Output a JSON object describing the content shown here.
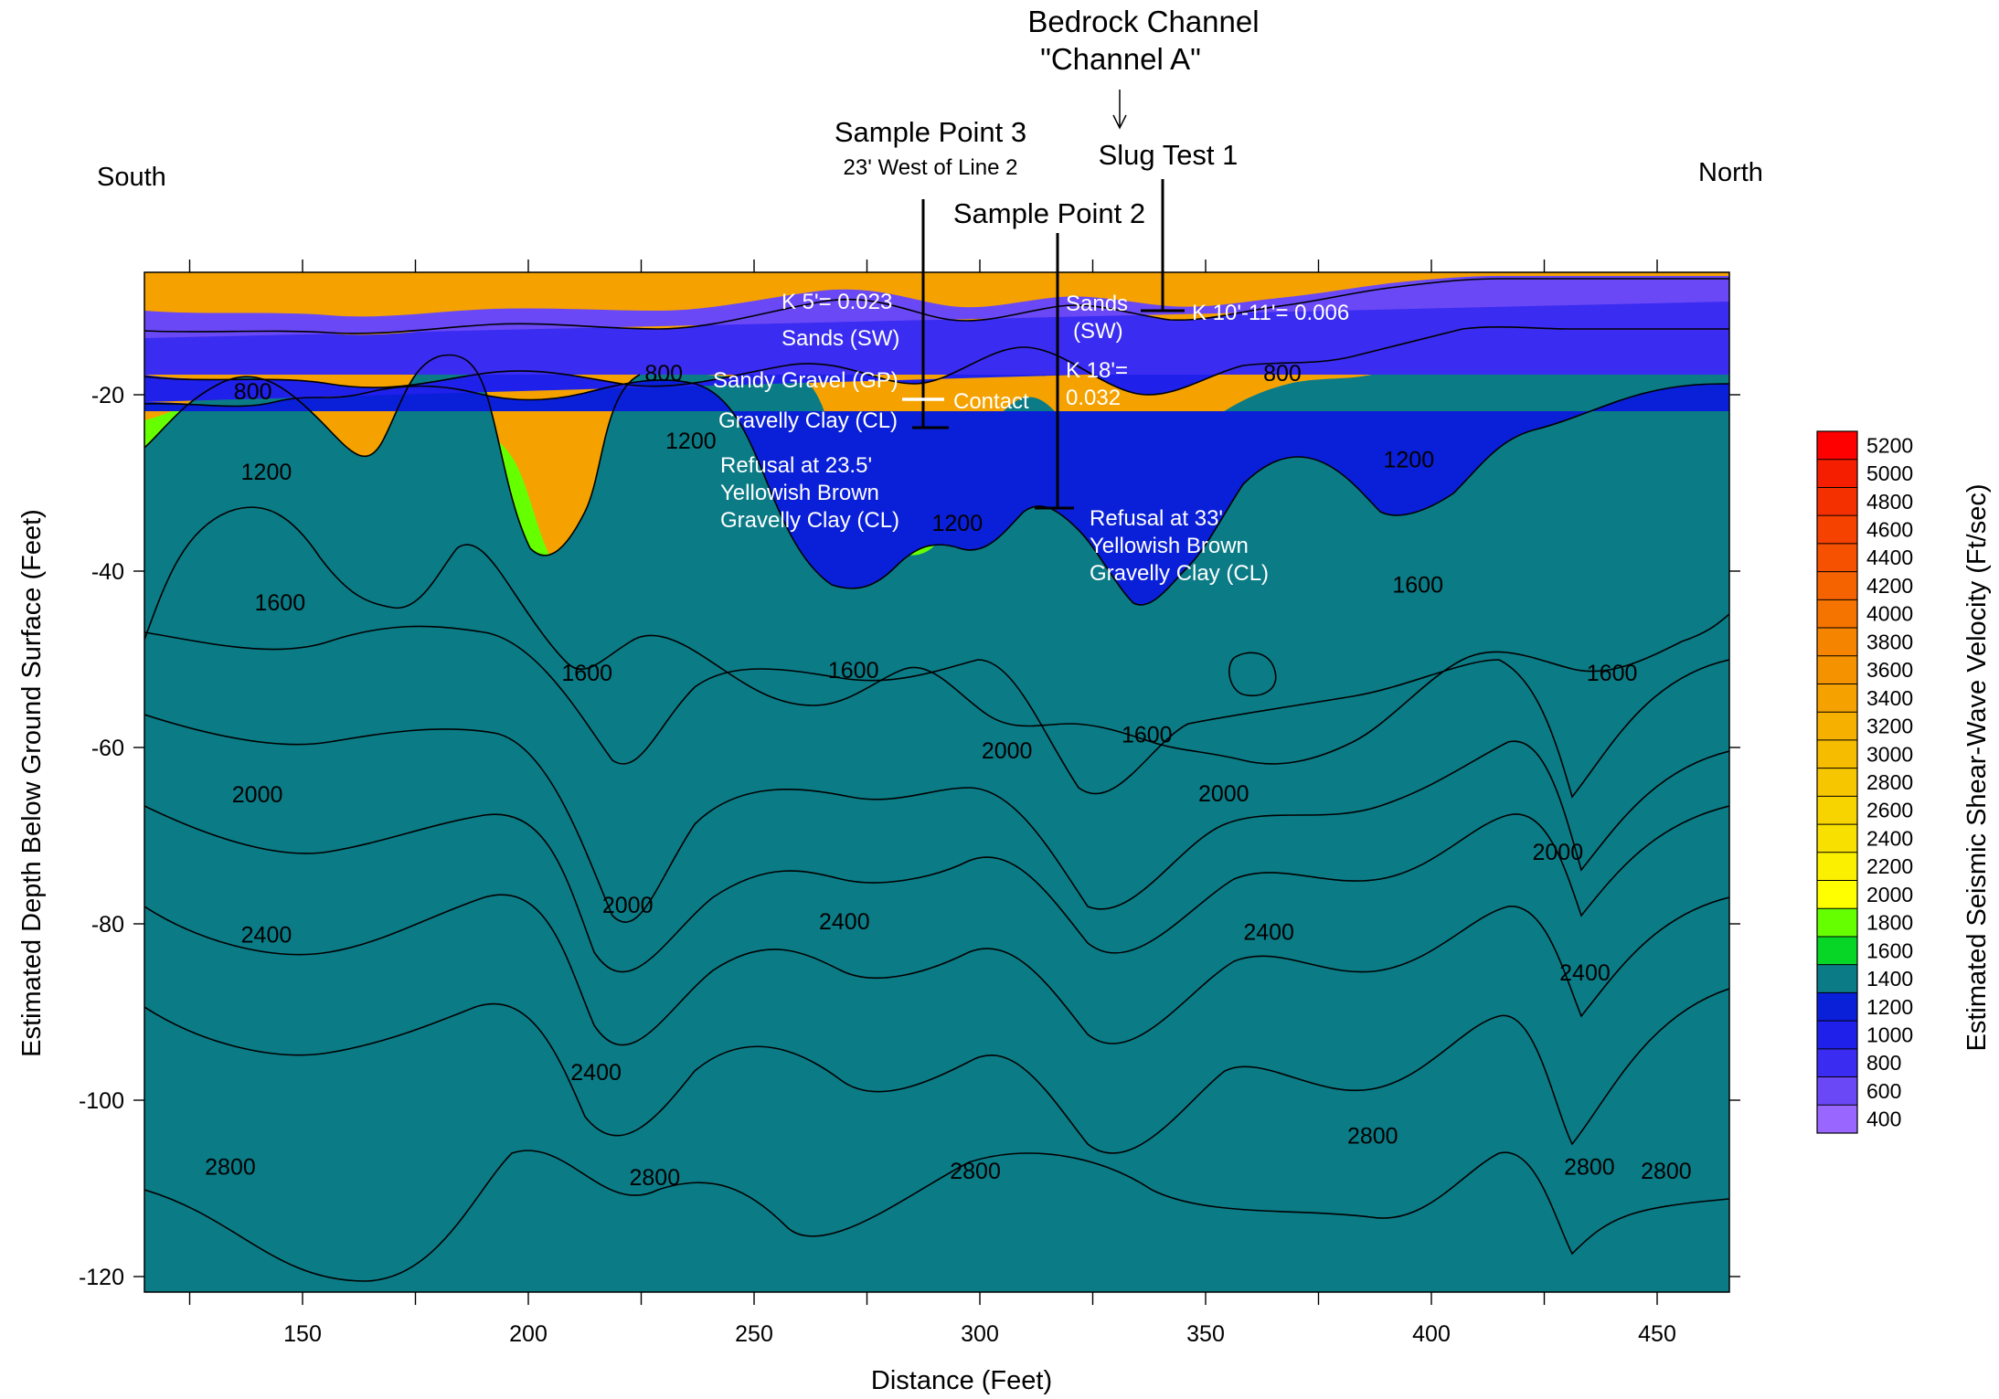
{
  "chart_data": {
    "type": "heatmap",
    "subtype": "filled contour cross-section",
    "xlabel": "Distance (Feet)",
    "ylabel": "Estimated Depth Below Ground Surface  (Feet)",
    "colorbar_label": "Estimated Seismic Shear-Wave Velocity (Ft/sec)",
    "xlim": [
      113,
      475
    ],
    "ylim": [
      -122,
      -5
    ],
    "x_ticks": [
      150,
      200,
      250,
      300,
      350,
      400,
      450
    ],
    "x_minor_ticks": [
      125,
      175,
      225,
      275,
      325,
      375,
      425,
      475
    ],
    "y_ticks": [
      -20,
      -40,
      -60,
      -80,
      -100,
      -120
    ],
    "orientation": {
      "left": "South",
      "right": "North"
    },
    "legend_levels": [
      5200,
      5000,
      4800,
      4600,
      4400,
      4200,
      4000,
      3800,
      3600,
      3400,
      3200,
      3000,
      2800,
      2600,
      2400,
      2200,
      2000,
      1800,
      1600,
      1400,
      1200,
      1000,
      800,
      600,
      400
    ],
    "level_colors": {
      "400": "#9966ff",
      "600": "#6a48f6",
      "800": "#3a2cf0",
      "1000": "#1f20ea",
      "1200": "#0a1fd8",
      "1400": "#0b7b86",
      "1600": "#08d627",
      "1800": "#66ff00",
      "2000": "#ffff00",
      "2200": "#fbf000",
      "2400": "#f8e000",
      "2600": "#f7d300",
      "2800": "#f6c600",
      "3000": "#f5bc00",
      "3200": "#f5b000",
      "3400": "#f5a200",
      "3600": "#f59200",
      "3800": "#f58400",
      "4000": "#f57400",
      "4200": "#f56300",
      "4400": "#f55100",
      "4600": "#f54200",
      "4800": "#f53000",
      "5000": "#f51f00",
      "5200": "#ff0000"
    },
    "contour_labels": [
      {
        "text": "800",
        "x": 139,
        "y": -19.6
      },
      {
        "text": "800",
        "x": 230,
        "y": -17.5
      },
      {
        "text": "800",
        "x": 367,
        "y": -17.5
      },
      {
        "text": "1200",
        "x": 142,
        "y": -28.7
      },
      {
        "text": "1200",
        "x": 236,
        "y": -25.2
      },
      {
        "text": "1200",
        "x": 295,
        "y": -34.5
      },
      {
        "text": "1200",
        "x": 395,
        "y": -27.3
      },
      {
        "text": "1600",
        "x": 145,
        "y": -43.5
      },
      {
        "text": "1600",
        "x": 213,
        "y": -51.5
      },
      {
        "text": "1600",
        "x": 272,
        "y": -51.2
      },
      {
        "text": "1600",
        "x": 337,
        "y": -58.5
      },
      {
        "text": "1600",
        "x": 397,
        "y": -41.5
      },
      {
        "text": "1600",
        "x": 440,
        "y": -51.5
      },
      {
        "text": "2000",
        "x": 140,
        "y": -65.3
      },
      {
        "text": "2000",
        "x": 222,
        "y": -77.8
      },
      {
        "text": "2000",
        "x": 306,
        "y": -60.3
      },
      {
        "text": "2000",
        "x": 354,
        "y": -65.2
      },
      {
        "text": "2000",
        "x": 428,
        "y": -71.8
      },
      {
        "text": "2400",
        "x": 142,
        "y": -81.2
      },
      {
        "text": "2400",
        "x": 270,
        "y": -79.7
      },
      {
        "text": "2400",
        "x": 364,
        "y": -80.9
      },
      {
        "text": "2400",
        "x": 215,
        "y": -96.8
      },
      {
        "text": "2400",
        "x": 434,
        "y": -85.5
      },
      {
        "text": "2800",
        "x": 134,
        "y": -107.5
      },
      {
        "text": "2800",
        "x": 228,
        "y": -108.7
      },
      {
        "text": "2800",
        "x": 299,
        "y": -108.0
      },
      {
        "text": "2800",
        "x": 387,
        "y": -104.0
      },
      {
        "text": "2800",
        "x": 435,
        "y": -107.5
      },
      {
        "text": "2800",
        "x": 452,
        "y": -108.0
      }
    ],
    "annotations": [
      {
        "text": "Bedrock Channel",
        "group": "header"
      },
      {
        "text": "\"Channel A\"",
        "group": "header"
      },
      {
        "text": "Slug Test 1",
        "group": "header"
      },
      {
        "text": "Sample Point 3",
        "group": "header"
      },
      {
        "text": "23' West of Line 2",
        "group": "header"
      },
      {
        "text": "Sample Point 2",
        "group": "header"
      },
      {
        "text": "K 5'= 0.023",
        "group": "in-plot"
      },
      {
        "text": "Sands (SW)",
        "group": "in-plot"
      },
      {
        "text": "Sandy Gravel (GP)",
        "group": "in-plot"
      },
      {
        "text": "Contact",
        "group": "in-plot"
      },
      {
        "text": "Gravelly Clay (CL)",
        "group": "in-plot"
      },
      {
        "text": "Refusal at 23.5'",
        "group": "in-plot"
      },
      {
        "text": "Yellowish Brown",
        "group": "in-plot"
      },
      {
        "text": "Gravelly Clay (CL)",
        "group": "in-plot"
      },
      {
        "text": "Sands",
        "group": "in-plot"
      },
      {
        "text": "(SW)",
        "group": "in-plot"
      },
      {
        "text": "K 10'-11'= 0.006",
        "group": "in-plot"
      },
      {
        "text": "K 18'=",
        "group": "in-plot"
      },
      {
        "text": "0.032",
        "group": "in-plot"
      },
      {
        "text": "Refusal at 33'",
        "group": "in-plot"
      },
      {
        "text": "Yellowish Brown",
        "group": "in-plot"
      },
      {
        "text": "Gravelly Clay (CL)",
        "group": "in-plot"
      }
    ],
    "boreholes": [
      {
        "name": "Sample Point 3",
        "x": 291,
        "bottom_depth": -23.5
      },
      {
        "name": "Sample Point 2",
        "x": 321,
        "bottom_depth": -33
      },
      {
        "name": "Slug Test 1",
        "x": 345,
        "bottom_depth": -10.5
      }
    ],
    "grid": false
  }
}
